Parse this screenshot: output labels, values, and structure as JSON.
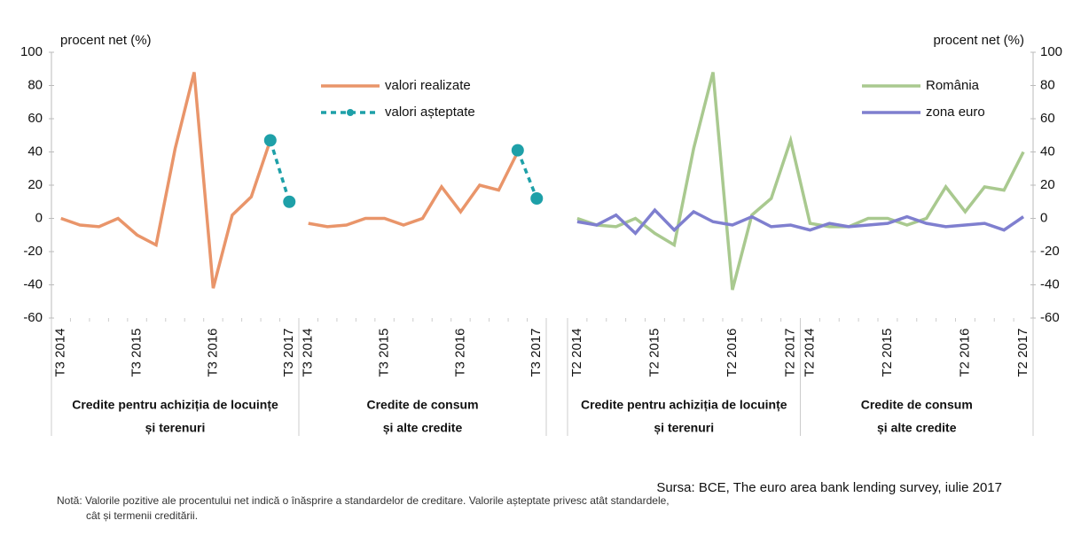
{
  "chart_data": [
    {
      "type": "line",
      "ylabel": "procent net (%)",
      "y_axis": "left",
      "ylim": [
        -60,
        100
      ],
      "yticks": [
        -60,
        -40,
        -20,
        0,
        20,
        40,
        60,
        80,
        100
      ],
      "groups": [
        {
          "name": [
            "Credite pentru achiziția de locuințe",
            "și terenuri"
          ],
          "categories": [
            "T3 2014",
            null,
            null,
            null,
            "T3 2015",
            null,
            null,
            null,
            "T3 2016",
            null,
            null,
            null,
            "T3 2017"
          ]
        },
        {
          "name": [
            "Credite de consum",
            "și alte credite"
          ],
          "categories": [
            "T3 2014",
            null,
            null,
            null,
            "T3 2015",
            null,
            null,
            null,
            "T3 2016",
            null,
            null,
            null,
            "T3 2017"
          ]
        }
      ],
      "series": [
        {
          "name": "valori realizate",
          "color": "#e9956a",
          "style": "solid",
          "markers": false,
          "values": [
            0,
            -4,
            -5,
            0,
            -10,
            -16,
            42,
            88,
            -42,
            2,
            13,
            47,
            null,
            -3,
            -5,
            -4,
            0,
            0,
            -4,
            0,
            19,
            4,
            20,
            17,
            40,
            null
          ]
        },
        {
          "name": "valori așteptate",
          "color": "#1ea0a8",
          "style": "dashed",
          "markers": true,
          "values": [
            null,
            null,
            null,
            null,
            null,
            null,
            null,
            null,
            null,
            null,
            null,
            47,
            10,
            null,
            null,
            null,
            null,
            null,
            null,
            null,
            null,
            null,
            null,
            null,
            41,
            12
          ]
        }
      ]
    },
    {
      "type": "line",
      "ylabel": "procent net (%)",
      "y_axis": "right",
      "ylim": [
        -60,
        100
      ],
      "yticks": [
        -60,
        -40,
        -20,
        0,
        20,
        40,
        60,
        80,
        100
      ],
      "groups": [
        {
          "name": [
            "Credite pentru achiziția de locuințe",
            "și terenuri"
          ],
          "categories": [
            "T2 2014",
            null,
            null,
            null,
            "T2 2015",
            null,
            null,
            null,
            "T2 2016",
            null,
            null,
            "T2 2017"
          ]
        },
        {
          "name": [
            "Credite de consum",
            "și alte credite"
          ],
          "categories": [
            "T2 2014",
            null,
            null,
            null,
            "T2 2015",
            null,
            null,
            null,
            "T2 2016",
            null,
            null,
            "T2 2017"
          ]
        }
      ],
      "series": [
        {
          "name": "România",
          "color": "#a9c98f",
          "style": "solid",
          "markers": false,
          "values": [
            0,
            -4,
            -5,
            0,
            -9,
            -16,
            42,
            88,
            -43,
            2,
            12,
            47,
            -3,
            -5,
            -5,
            0,
            0,
            -4,
            0,
            19,
            4,
            19,
            17,
            40
          ]
        },
        {
          "name": "zona euro",
          "color": "#7f7fcf",
          "style": "solid",
          "markers": false,
          "values": [
            -2,
            -4,
            2,
            -9,
            5,
            -7,
            4,
            -2,
            -4,
            1,
            -5,
            -4,
            -7,
            -3,
            -5,
            -4,
            -3,
            1,
            -3,
            -5,
            -4,
            -3,
            -7,
            1
          ]
        }
      ]
    }
  ],
  "source": "Sursa: BCE, The euro area bank lending survey, iulie 2017",
  "note": [
    "Notă: Valorile pozitive ale procentului net indică o înăsprire a standardelor de creditare. Valorile așteptate privesc atât standardele,",
    "cât și termenii creditării."
  ]
}
